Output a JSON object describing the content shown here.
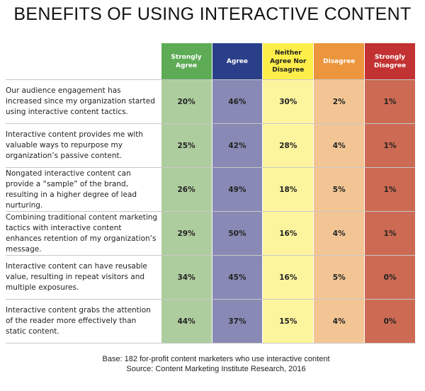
{
  "chart_data": {
    "type": "table",
    "title": "BENEFITS OF USING INTERACTIVE CONTENT",
    "columns": [
      {
        "label": "Strongly Agree",
        "header_color": "#5dab55",
        "cell_color": "#aecd9f",
        "text_color": "#ffffff"
      },
      {
        "label": "Agree",
        "header_color": "#2a3f8a",
        "cell_color": "#8889b5",
        "text_color": "#ffffff"
      },
      {
        "label": "Neither Agree Nor Disagree",
        "header_color": "#fdee4a",
        "cell_color": "#fdf59e",
        "text_color": "#222222"
      },
      {
        "label": "Disagree",
        "header_color": "#ec953d",
        "cell_color": "#f3c594",
        "text_color": "#ffffff"
      },
      {
        "label": "Strongly Disagree",
        "header_color": "#c23232",
        "cell_color": "#cc6a53",
        "text_color": "#ffffff"
      }
    ],
    "rows": [
      {
        "statement": "Our audience engagement has increased since my organization started using interactive content tactics.",
        "values": [
          "20%",
          "46%",
          "30%",
          "2%",
          "1%"
        ]
      },
      {
        "statement": "Interactive content provides me with valuable ways to repurpose my organization’s passive content.",
        "values": [
          "25%",
          "42%",
          "28%",
          "4%",
          "1%"
        ]
      },
      {
        "statement": "Nongated interactive content can provide a “sample” of the brand, resulting in a higher degree of lead nurturing.",
        "values": [
          "26%",
          "49%",
          "18%",
          "5%",
          "1%"
        ]
      },
      {
        "statement": "Combining traditional content marketing tactics with interactive content enhances retention of my organization’s message.",
        "values": [
          "29%",
          "50%",
          "16%",
          "4%",
          "1%"
        ]
      },
      {
        "statement": "Interactive content can have reusable value, resulting in repeat visitors and multiple exposures.",
        "values": [
          "34%",
          "45%",
          "16%",
          "5%",
          "0%"
        ]
      },
      {
        "statement": "Interactive content grabs the attention of the reader more effectively than static content.",
        "values": [
          "44%",
          "37%",
          "15%",
          "4%",
          "0%"
        ]
      }
    ]
  },
  "footer": {
    "base": "Base: 182 for-profit content marketers who use interactive content",
    "source": "Source: Content Marketing Institute Research, 2016"
  }
}
